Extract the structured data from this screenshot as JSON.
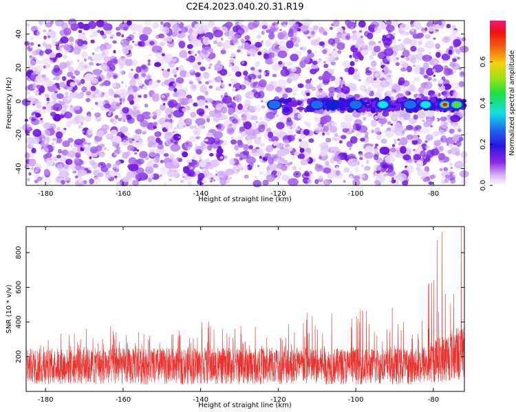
{
  "title": "C2E4.2023.040.20.31.R19",
  "colors": {
    "snr_line": "#e8322e",
    "heat_low": "#f3e6fb",
    "heat_mid": "#7a1fe6",
    "heat_blue": "#1420d8",
    "heat_cyan": "#16e6e6",
    "heat_green": "#58e012",
    "heat_red": "#ee1111"
  },
  "chart_data": [
    {
      "type": "heatmap",
      "xlabel": "Height of straight line (km)",
      "ylabel": "Frequency (Hz)",
      "xlim": [
        -185,
        -72
      ],
      "ylim": [
        -50,
        48
      ],
      "x_ticks": [
        -180,
        -160,
        -140,
        -120,
        -100,
        -80
      ],
      "y_ticks": [
        -40,
        -20,
        0,
        20,
        40
      ],
      "grid": false,
      "colorbar": {
        "label": "Normalized spectral amplitude",
        "range": [
          0.0,
          0.8
        ],
        "ticks": [
          0.0,
          0.2,
          0.4,
          0.6
        ],
        "colormap": "rainbow (white-violet-blue-cyan-green-yellow-red-magenta)"
      },
      "description_of_signal": "Background noise of violet speckles everywhere; a horizontal band near 0 Hz from about -122 km to -72 km with increasing amplitude toward -78 km.",
      "band": {
        "frequency_center": -2,
        "x_range": [
          -122,
          -72
        ],
        "peaks": [
          {
            "x": -121,
            "amplitude": 0.25
          },
          {
            "x": -110,
            "amplitude": 0.22
          },
          {
            "x": -106,
            "amplitude": 0.2
          },
          {
            "x": -100,
            "amplitude": 0.25
          },
          {
            "x": -93,
            "amplitude": 0.32
          },
          {
            "x": -86,
            "amplitude": 0.28
          },
          {
            "x": -82,
            "amplitude": 0.35
          },
          {
            "x": -77,
            "amplitude": 0.75
          },
          {
            "x": -74,
            "amplitude": 0.4
          }
        ]
      }
    },
    {
      "type": "line",
      "xlabel": "Height of straight line (km)",
      "ylabel": "SNR (10 * v/v)",
      "xlim": [
        -185,
        -72
      ],
      "ylim": [
        0,
        950
      ],
      "x_ticks": [
        -180,
        -160,
        -140,
        -120,
        -100,
        -80
      ],
      "y_ticks": [
        200,
        400,
        600,
        800
      ],
      "grid": false,
      "series": [
        {
          "style": "dense noisy trace",
          "baseline_mean": 135,
          "baseline_spread": [
            20,
            300
          ],
          "envelope": [
            {
              "x": -185,
              "max": 300
            },
            {
              "x": -170,
              "max": 400
            },
            {
              "x": -150,
              "max": 330
            },
            {
              "x": -138,
              "max": 430
            },
            {
              "x": -120,
              "max": 360
            },
            {
              "x": -110,
              "max": 500
            },
            {
              "x": -100,
              "max": 510
            },
            {
              "x": -90,
              "max": 480
            },
            {
              "x": -85,
              "max": 380
            },
            {
              "x": -82,
              "max": 620
            },
            {
              "x": -78,
              "max": 870
            },
            {
              "x": -76.8,
              "max": 950
            },
            {
              "x": -75,
              "max": 560
            },
            {
              "x": -72,
              "max": 760
            }
          ]
        }
      ]
    }
  ]
}
